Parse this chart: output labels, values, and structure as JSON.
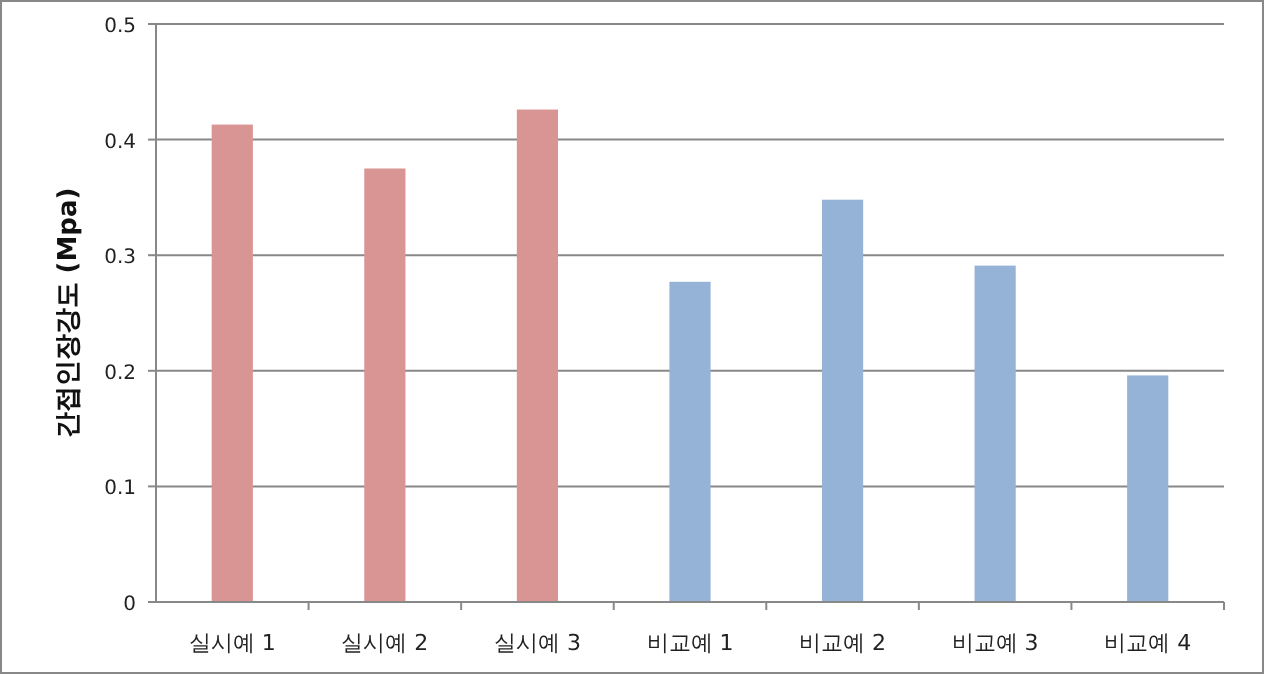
{
  "chart_data": {
    "type": "bar",
    "ylabel": "간접인장강도 (Mpa)",
    "categories": [
      "실시예 1",
      "실시예 2",
      "실시예 3",
      "비교예 1",
      "비교예 2",
      "비교예 3",
      "비교예 4"
    ],
    "values": [
      0.413,
      0.375,
      0.426,
      0.277,
      0.348,
      0.291,
      0.196
    ],
    "colors": [
      "#d99594",
      "#d99594",
      "#d99594",
      "#95b3d7",
      "#95b3d7",
      "#95b3d7",
      "#95b3d7"
    ],
    "ylim": [
      0,
      0.5
    ],
    "yticks": [
      0,
      0.1,
      0.2,
      0.3,
      0.4,
      0.5
    ],
    "grid": "y"
  }
}
